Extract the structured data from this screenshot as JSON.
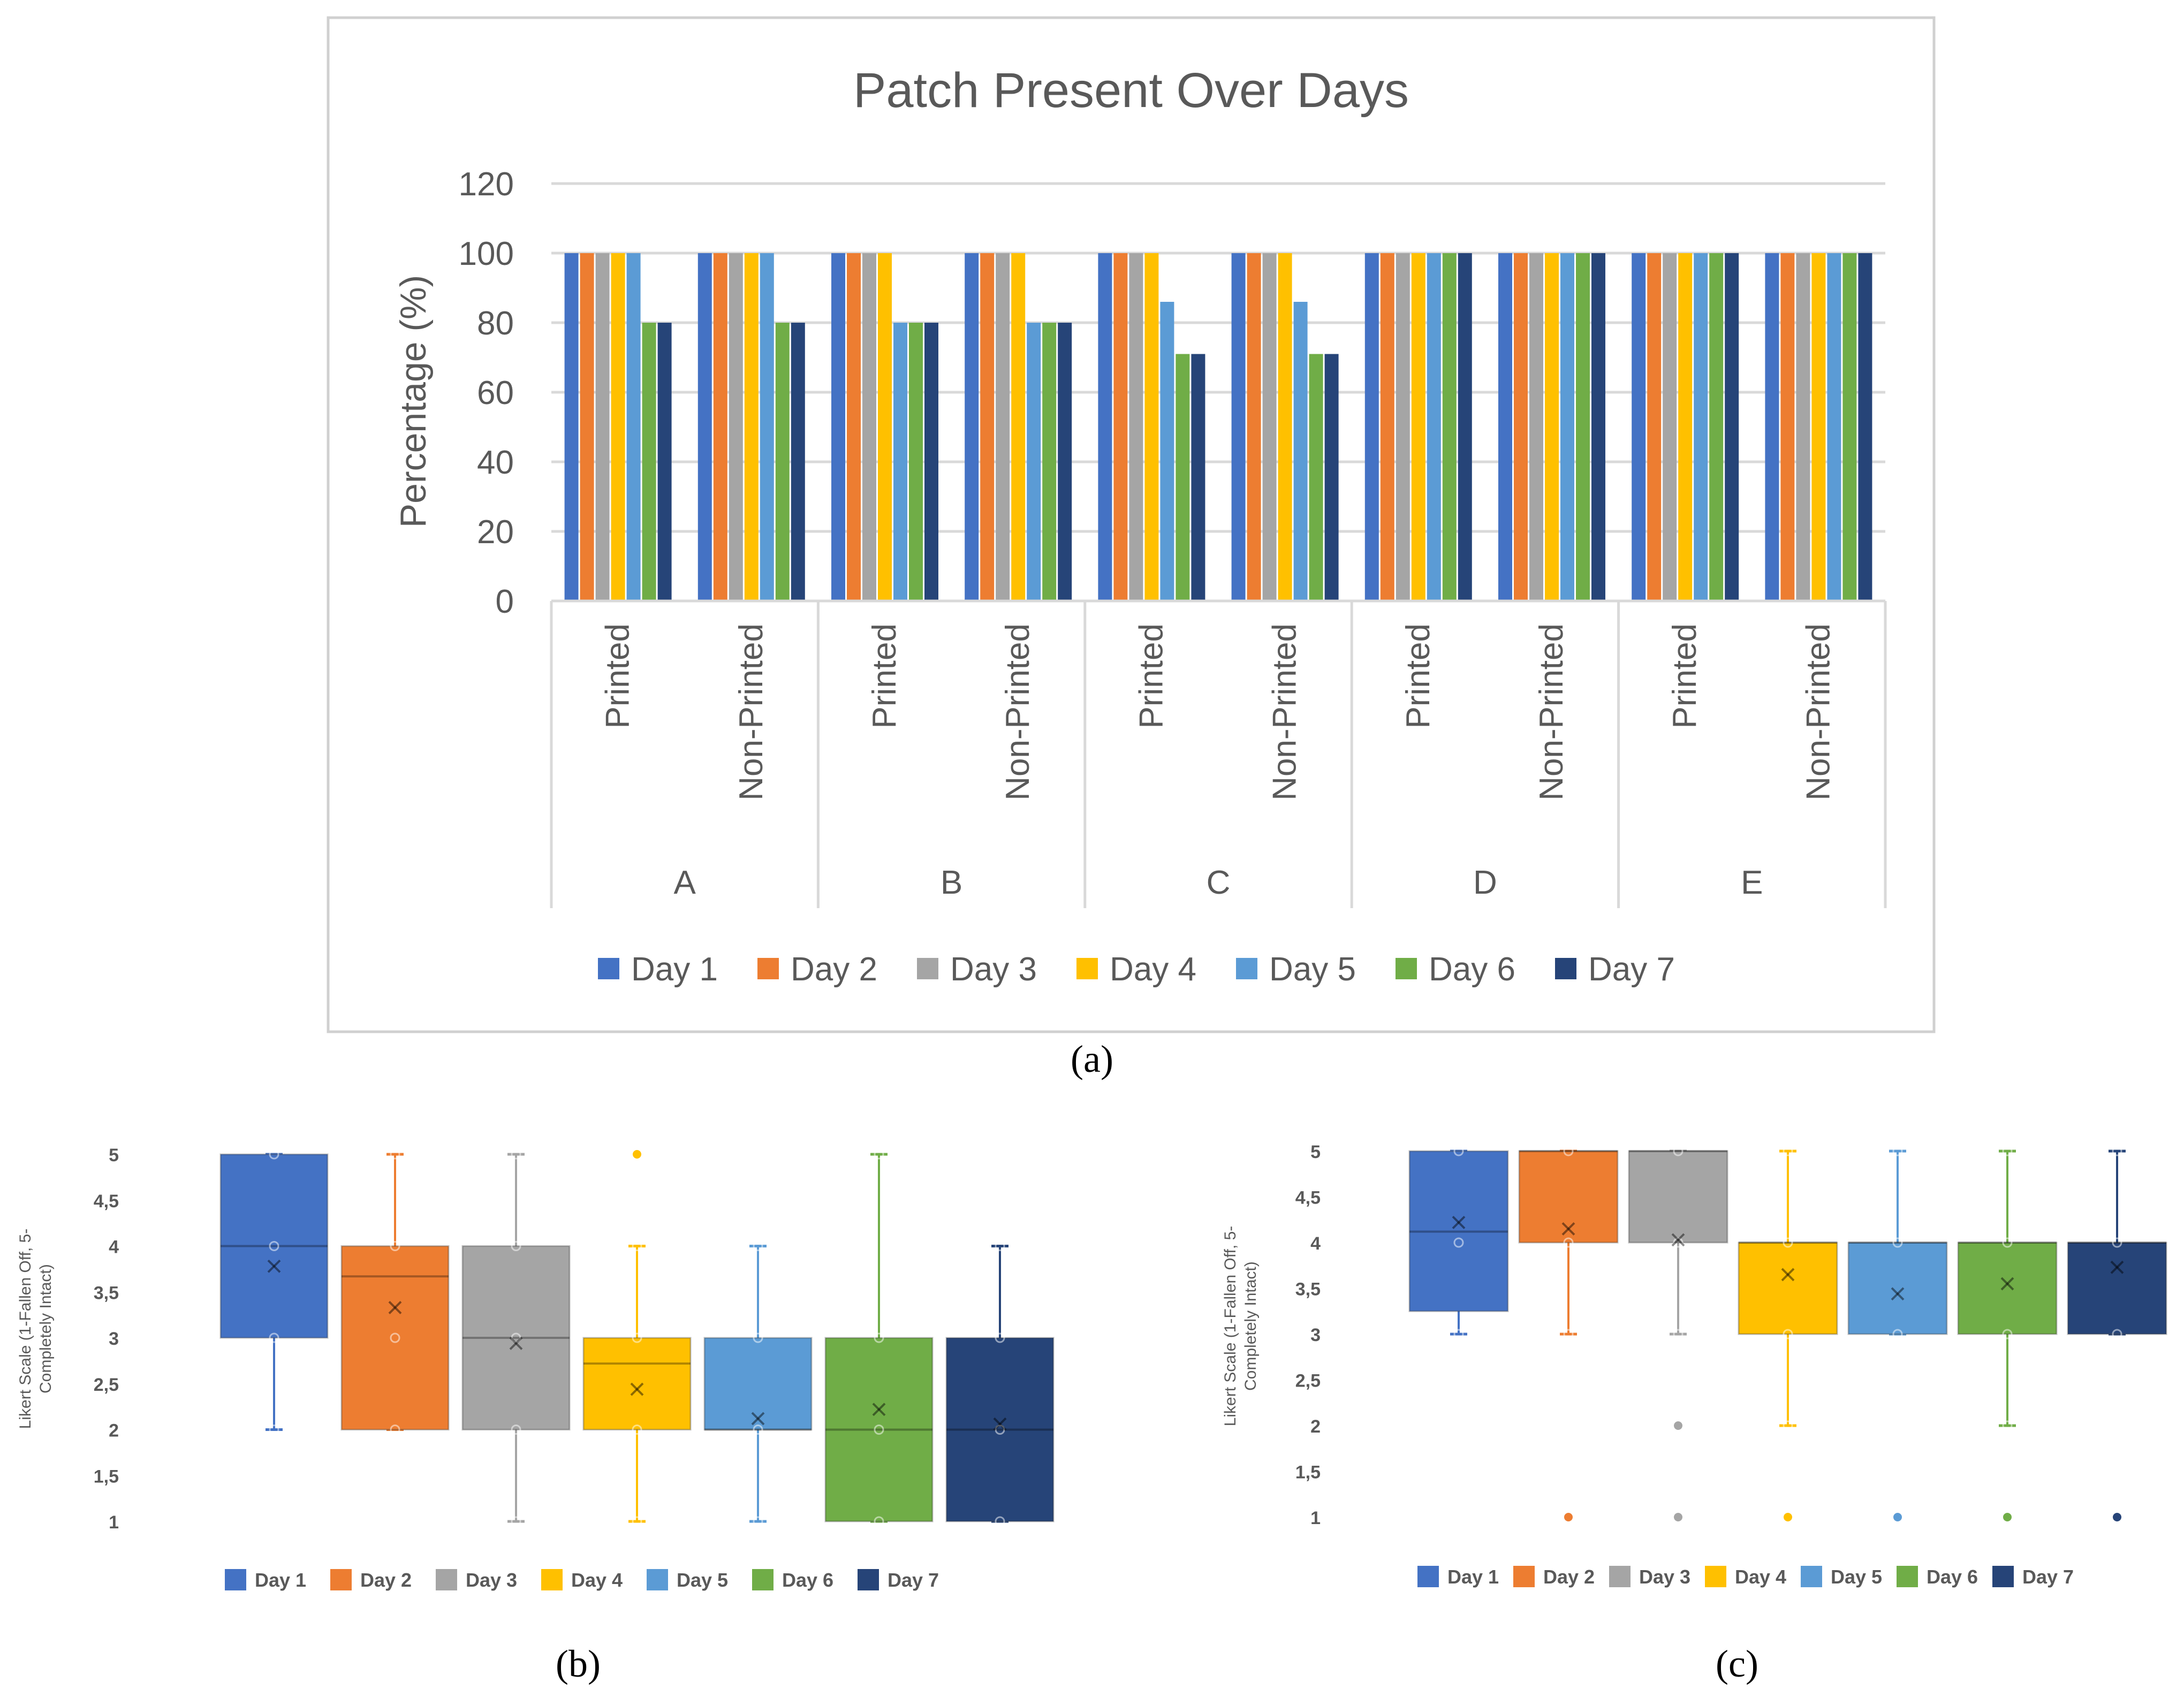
{
  "colors": {
    "day1": "#4472C4",
    "day2": "#ED7D31",
    "day3": "#A5A5A5",
    "day4": "#FFC000",
    "day5": "#5B9BD5",
    "day6": "#70AD47",
    "day7": "#264478",
    "grid": "#D9D9D9",
    "text": "#595959",
    "frame": "#D0D0D0"
  },
  "chart_data": [
    {
      "id": "a",
      "type": "bar",
      "caption": "(a)",
      "title": "Patch Present Over Days",
      "xlabel": "",
      "ylabel": "Percentage (%)",
      "ylim": [
        0,
        120
      ],
      "yticks": [
        "0",
        "20",
        "40",
        "60",
        "80",
        "100",
        "120"
      ],
      "groups": [
        "A",
        "B",
        "C",
        "D",
        "E"
      ],
      "subcategories": [
        "Printed",
        "Non-Printed"
      ],
      "legend_position": "bottom",
      "series": [
        {
          "name": "Day 1",
          "color_key": "day1",
          "values": [
            100,
            100,
            100,
            100,
            100,
            100,
            100,
            100,
            100,
            100
          ]
        },
        {
          "name": "Day 2",
          "color_key": "day2",
          "values": [
            100,
            100,
            100,
            100,
            100,
            100,
            100,
            100,
            100,
            100
          ]
        },
        {
          "name": "Day 3",
          "color_key": "day3",
          "values": [
            100,
            100,
            100,
            100,
            100,
            100,
            100,
            100,
            100,
            100
          ]
        },
        {
          "name": "Day 4",
          "color_key": "day4",
          "values": [
            100,
            100,
            100,
            100,
            100,
            100,
            100,
            100,
            100,
            100
          ]
        },
        {
          "name": "Day 5",
          "color_key": "day5",
          "values": [
            100,
            100,
            80,
            80,
            86,
            86,
            100,
            100,
            100,
            100
          ]
        },
        {
          "name": "Day 6",
          "color_key": "day6",
          "values": [
            80,
            80,
            80,
            80,
            71,
            71,
            100,
            100,
            100,
            100
          ]
        },
        {
          "name": "Day 7",
          "color_key": "day7",
          "values": [
            80,
            80,
            80,
            80,
            71,
            71,
            100,
            100,
            100,
            100
          ]
        }
      ]
    },
    {
      "id": "b",
      "type": "box",
      "caption": "(b)",
      "title": "",
      "xlabel": "",
      "ylabel": "Likert Scale (1-Fallen Off, 5-Completely Intact)",
      "ylabel_lines": [
        "Likert Scale (1-Fallen Off, 5-",
        "Completely Intact)"
      ],
      "ylim": [
        1,
        5
      ],
      "yticks": [
        "1",
        "1,5",
        "2",
        "2,5",
        "3",
        "3,5",
        "4",
        "4,5",
        "5"
      ],
      "legend_position": "bottom",
      "boxes": [
        {
          "name": "Day 1",
          "color_key": "day1",
          "q1": 3,
          "median": 4,
          "q3": 5,
          "whisker_low": 2,
          "whisker_high": 5,
          "mean": 3.78,
          "points": [
            2,
            3,
            4,
            5
          ],
          "outliers": []
        },
        {
          "name": "Day 2",
          "color_key": "day2",
          "q1": 2,
          "median": 3.67,
          "q3": 4,
          "whisker_low": 2,
          "whisker_high": 5,
          "mean": 3.33,
          "points": [
            2,
            3,
            4,
            5
          ],
          "outliers": []
        },
        {
          "name": "Day 3",
          "color_key": "day3",
          "q1": 2,
          "median": 3,
          "q3": 4,
          "whisker_low": 1,
          "whisker_high": 5,
          "mean": 2.94,
          "points": [
            1,
            2,
            3,
            4,
            5
          ],
          "outliers": []
        },
        {
          "name": "Day 4",
          "color_key": "day4",
          "q1": 2,
          "median": 2.72,
          "q3": 3,
          "whisker_low": 1,
          "whisker_high": 4,
          "mean": 2.44,
          "points": [
            1,
            2,
            3,
            4
          ],
          "outliers": [
            5
          ]
        },
        {
          "name": "Day 5",
          "color_key": "day5",
          "q1": 2,
          "median": 2,
          "q3": 3,
          "whisker_low": 1,
          "whisker_high": 4,
          "mean": 2.12,
          "points": [
            1,
            2,
            3,
            4
          ],
          "outliers": []
        },
        {
          "name": "Day 6",
          "color_key": "day6",
          "q1": 1,
          "median": 2,
          "q3": 3,
          "whisker_low": 1,
          "whisker_high": 5,
          "mean": 2.22,
          "points": [
            1,
            2,
            3,
            5
          ],
          "outliers": []
        },
        {
          "name": "Day 7",
          "color_key": "day7",
          "q1": 1,
          "median": 2,
          "q3": 3,
          "whisker_low": 1,
          "whisker_high": 4,
          "mean": 2.06,
          "points": [
            1,
            2,
            3,
            4
          ],
          "outliers": []
        }
      ]
    },
    {
      "id": "c",
      "type": "box",
      "caption": "(c)",
      "title": "",
      "xlabel": "",
      "ylabel": "Likert Scale (1-Fallen Off, 5-Completely Intact)",
      "ylabel_lines": [
        "Likert Scale (1-Fallen Off, 5-",
        "Completely Intact)"
      ],
      "ylim": [
        1,
        5
      ],
      "yticks": [
        "1",
        "1,5",
        "2",
        "2,5",
        "3",
        "3,5",
        "4",
        "4,5",
        "5"
      ],
      "legend_position": "bottom",
      "boxes": [
        {
          "name": "Day 1",
          "color_key": "day1",
          "q1": 3.25,
          "median": 4.12,
          "q3": 5,
          "whisker_low": 3,
          "whisker_high": 5,
          "mean": 4.22,
          "points": [
            3,
            4,
            5
          ],
          "outliers": []
        },
        {
          "name": "Day 2",
          "color_key": "day2",
          "q1": 4,
          "median": 5,
          "q3": 5,
          "whisker_low": 3,
          "whisker_high": 5,
          "mean": 4.15,
          "points": [
            3,
            4,
            5
          ],
          "outliers": [
            1
          ]
        },
        {
          "name": "Day 3",
          "color_key": "day3",
          "q1": 4,
          "median": 5,
          "q3": 5,
          "whisker_low": 3,
          "whisker_high": 5,
          "mean": 4.03,
          "points": [
            3,
            4,
            5
          ],
          "outliers": [
            2,
            1
          ]
        },
        {
          "name": "Day 4",
          "color_key": "day4",
          "q1": 3,
          "median": 4,
          "q3": 4,
          "whisker_low": 2,
          "whisker_high": 5,
          "mean": 3.65,
          "points": [
            2,
            3,
            4,
            5
          ],
          "outliers": [
            1
          ]
        },
        {
          "name": "Day 5",
          "color_key": "day5",
          "q1": 3,
          "median": 4,
          "q3": 4,
          "whisker_low": 3,
          "whisker_high": 5,
          "mean": 3.44,
          "points": [
            3,
            4,
            5
          ],
          "outliers": [
            1
          ]
        },
        {
          "name": "Day 6",
          "color_key": "day6",
          "q1": 3,
          "median": 4,
          "q3": 4,
          "whisker_low": 2,
          "whisker_high": 5,
          "mean": 3.55,
          "points": [
            2,
            3,
            4,
            5
          ],
          "outliers": [
            1
          ]
        },
        {
          "name": "Day 7",
          "color_key": "day7",
          "q1": 3,
          "median": 4,
          "q3": 4,
          "whisker_low": 3,
          "whisker_high": 5,
          "mean": 3.73,
          "points": [
            3,
            4,
            5
          ],
          "outliers": [
            1
          ]
        }
      ]
    }
  ]
}
